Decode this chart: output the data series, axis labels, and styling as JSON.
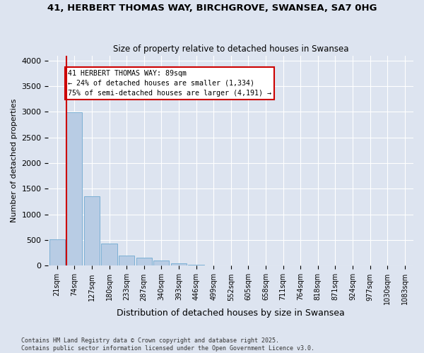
{
  "title_line1": "41, HERBERT THOMAS WAY, BIRCHGROVE, SWANSEA, SA7 0HG",
  "title_line2": "Size of property relative to detached houses in Swansea",
  "xlabel": "Distribution of detached houses by size in Swansea",
  "ylabel": "Number of detached properties",
  "bar_color": "#b8cce4",
  "bar_edgecolor": "#7bafd4",
  "bar_values": [
    510,
    2990,
    1350,
    430,
    200,
    155,
    100,
    50,
    18,
    5,
    2,
    1,
    0,
    0,
    0,
    0,
    0,
    0,
    0,
    0,
    0
  ],
  "bin_labels": [
    "21sqm",
    "74sqm",
    "127sqm",
    "180sqm",
    "233sqm",
    "287sqm",
    "340sqm",
    "393sqm",
    "446sqm",
    "499sqm",
    "552sqm",
    "605sqm",
    "658sqm",
    "711sqm",
    "764sqm",
    "818sqm",
    "871sqm",
    "924sqm",
    "977sqm",
    "1030sqm",
    "1083sqm"
  ],
  "ylim": [
    0,
    4100
  ],
  "yticks": [
    0,
    500,
    1000,
    1500,
    2000,
    2500,
    3000,
    3500,
    4000
  ],
  "red_line_x": 1,
  "annotation_title": "41 HERBERT THOMAS WAY: 89sqm",
  "annotation_line1": "← 24% of detached houses are smaller (1,334)",
  "annotation_line2": "75% of semi-detached houses are larger (4,191) →",
  "annotation_box_color": "#ffffff",
  "annotation_box_edgecolor": "#cc0000",
  "red_line_color": "#cc0000",
  "background_color": "#dde4f0",
  "fig_background_color": "#dde4f0",
  "footer_line1": "Contains HM Land Registry data © Crown copyright and database right 2025.",
  "footer_line2": "Contains public sector information licensed under the Open Government Licence v3.0.",
  "grid_color": "#ffffff"
}
